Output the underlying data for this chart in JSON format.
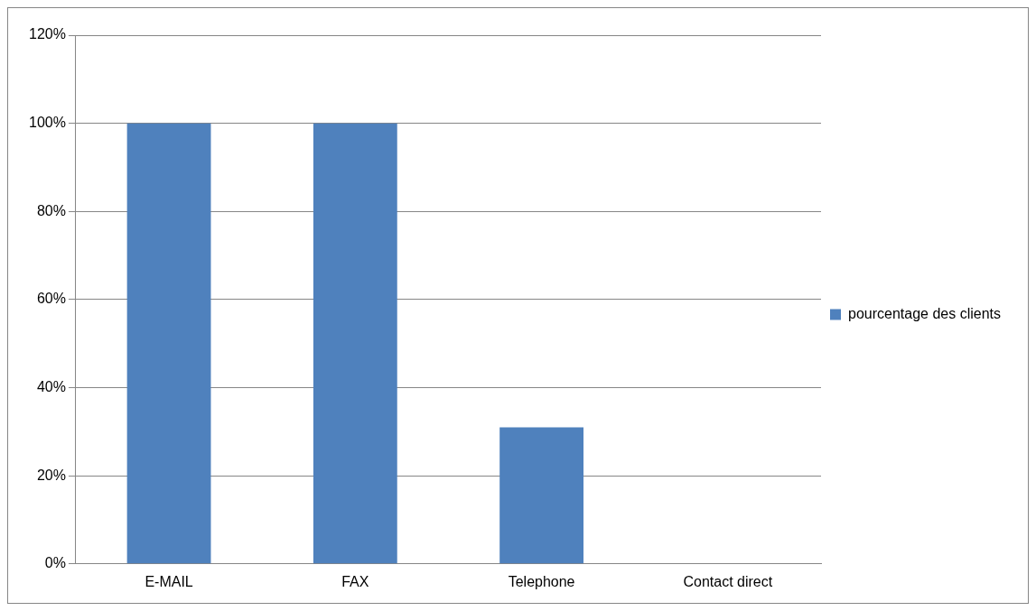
{
  "chart_data": {
    "type": "bar",
    "categories": [
      "E-MAIL",
      "FAX",
      "Telephone",
      "Contact direct"
    ],
    "series": [
      {
        "name": "pourcentage des clients",
        "color": "#4f81bd",
        "values": [
          100,
          100,
          31,
          0
        ]
      }
    ],
    "ylim": [
      0,
      120
    ],
    "yticks": [
      {
        "value": 0,
        "label": "0%"
      },
      {
        "value": 20,
        "label": "20%"
      },
      {
        "value": 40,
        "label": "40%"
      },
      {
        "value": 60,
        "label": "60%"
      },
      {
        "value": 80,
        "label": "80%"
      },
      {
        "value": 100,
        "label": "100%"
      },
      {
        "value": 120,
        "label": "120%"
      }
    ],
    "grid": "y",
    "legend": "right"
  }
}
